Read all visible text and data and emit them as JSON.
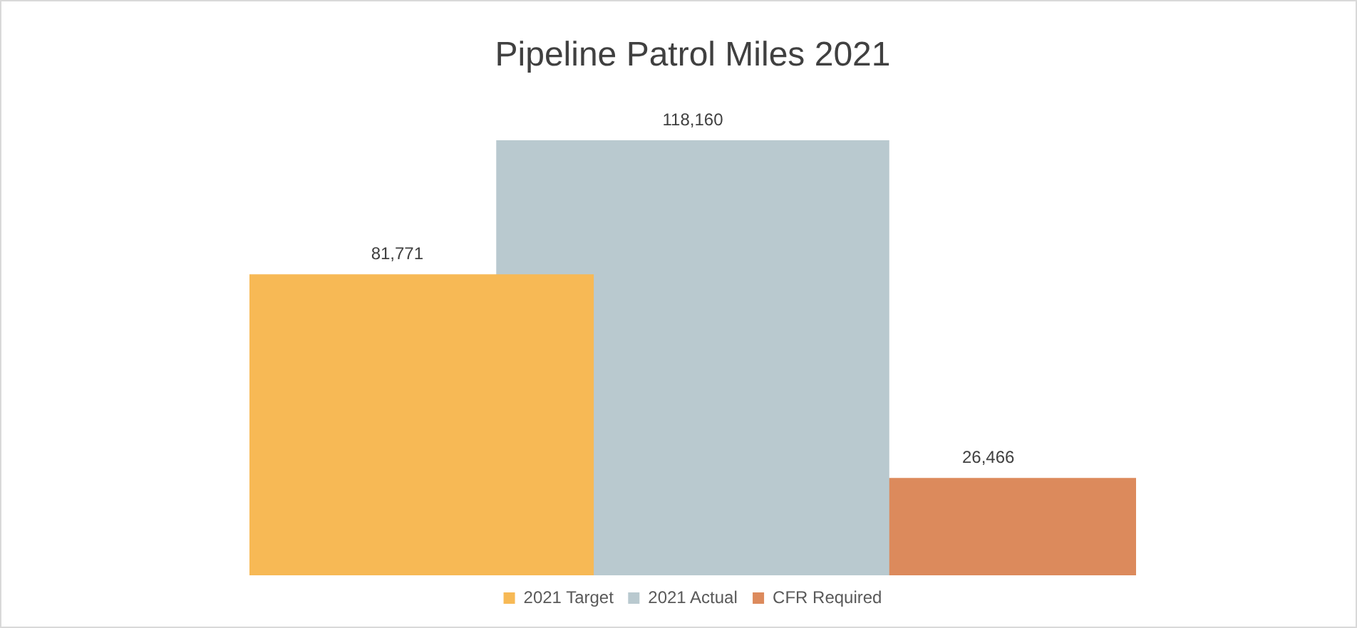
{
  "chart_data": {
    "type": "bar",
    "title": "Pipeline Patrol Miles 2021",
    "categories": [
      null
    ],
    "series": [
      {
        "name": "2021 Target",
        "color": "#f7b955",
        "values": [
          81771
        ],
        "value_labels": [
          "81,771"
        ]
      },
      {
        "name": "2021 Actual",
        "color": "#b9c9cf",
        "values": [
          118160
        ],
        "value_labels": [
          "118,160"
        ]
      },
      {
        "name": "CFR Required",
        "color": "#dc8a5c",
        "values": [
          26466
        ],
        "value_labels": [
          "26,466"
        ]
      }
    ],
    "legend": "bottom"
  }
}
